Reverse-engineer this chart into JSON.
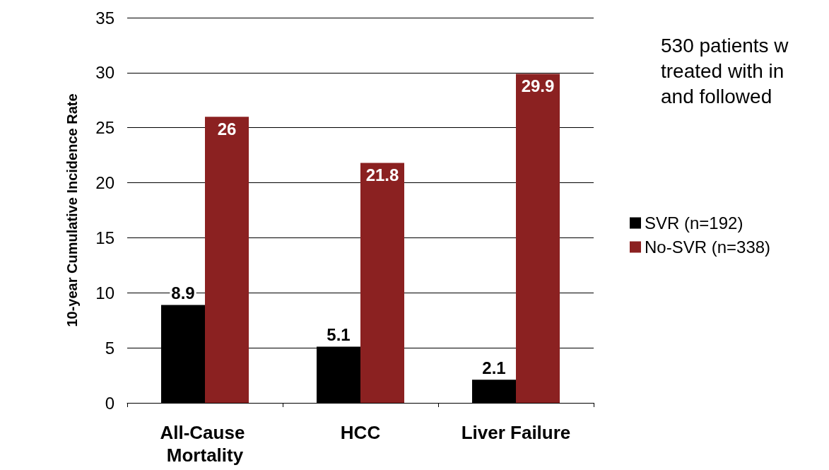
{
  "chart_data": {
    "type": "bar",
    "ylabel": "10-year Cumulative Incidence Rate",
    "categories": [
      "All-Cause Mortality",
      "HCC",
      "Liver Failure"
    ],
    "series": [
      {
        "name": "SVR (n=192)",
        "color": "#000000",
        "values": [
          8.9,
          5.1,
          2.1
        ]
      },
      {
        "name": "No-SVR (n=338)",
        "color": "#8b2121",
        "values": [
          26,
          21.8,
          29.9
        ]
      }
    ],
    "ylim": [
      0,
      35
    ],
    "yticks": [
      0,
      5,
      10,
      15,
      20,
      25,
      30,
      35
    ],
    "grid": "y",
    "legend": "right",
    "data_labels": true,
    "annotations": [
      "530 patients w\ntreated with in\nand followed"
    ]
  }
}
